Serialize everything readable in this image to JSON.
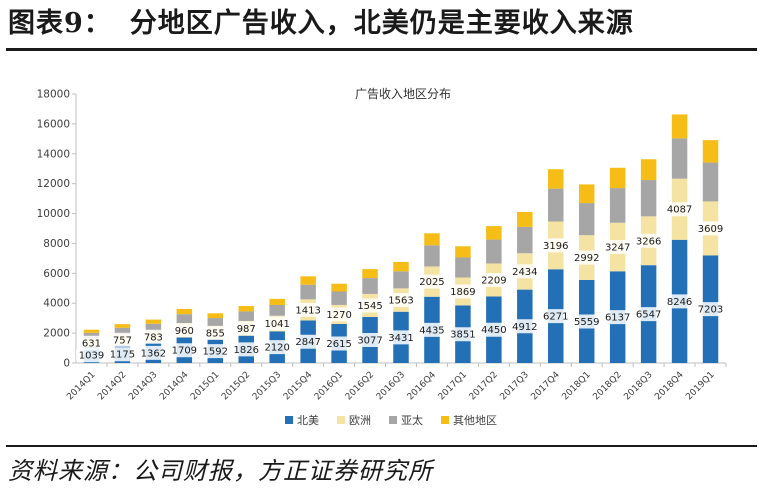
{
  "figure": {
    "label": "图表9：",
    "title": "分地区广告收入，北美仍是主要收入来源",
    "source": "资料来源：公司财报，方正证券研究所"
  },
  "chart_data": {
    "type": "bar",
    "stacked": true,
    "title": "广告收入地区分布",
    "xlabel": "",
    "ylabel": "",
    "ylim": [
      0,
      18000
    ],
    "yticks": [
      0,
      2000,
      4000,
      6000,
      8000,
      10000,
      12000,
      14000,
      16000,
      18000
    ],
    "grid": false,
    "legend_position": "bottom",
    "categories": [
      "2014Q1",
      "2014Q2",
      "2014Q3",
      "2014Q4",
      "2015Q1",
      "2015Q2",
      "2015Q3",
      "2015Q4",
      "2016Q1",
      "2016Q2",
      "2016Q3",
      "2016Q4",
      "2017Q1",
      "2017Q2",
      "2017Q3",
      "2017Q4",
      "2018Q1",
      "2018Q2",
      "2018Q3",
      "2018Q4",
      "2019Q1"
    ],
    "series": [
      {
        "name": "北美",
        "color": "#2370b6",
        "labeled": true,
        "values": [
          1039,
          1175,
          1362,
          1709,
          1592,
          1826,
          2120,
          2847,
          2615,
          3077,
          3431,
          4435,
          3851,
          4450,
          4912,
          6271,
          5559,
          6137,
          6547,
          8246,
          7203
        ]
      },
      {
        "name": "欧洲",
        "color": "#f5e3a3",
        "labeled": true,
        "values": [
          631,
          757,
          783,
          960,
          855,
          987,
          1041,
          1413,
          1270,
          1545,
          1563,
          2025,
          1869,
          2209,
          2434,
          3196,
          2992,
          3247,
          3266,
          4087,
          3609
        ]
      },
      {
        "name": "亚太",
        "color": "#a6a6a6",
        "labeled": false,
        "values": [
          350,
          420,
          480,
          600,
          560,
          640,
          720,
          980,
          900,
          1060,
          1140,
          1420,
          1340,
          1600,
          1760,
          2200,
          2150,
          2320,
          2430,
          2700,
          2600
        ]
      },
      {
        "name": "其他地区",
        "color": "#f6bd16",
        "labeled": false,
        "values": [
          210,
          250,
          280,
          350,
          320,
          360,
          410,
          560,
          520,
          600,
          630,
          800,
          750,
          900,
          1000,
          1300,
          1250,
          1360,
          1390,
          1600,
          1500
        ]
      }
    ]
  }
}
